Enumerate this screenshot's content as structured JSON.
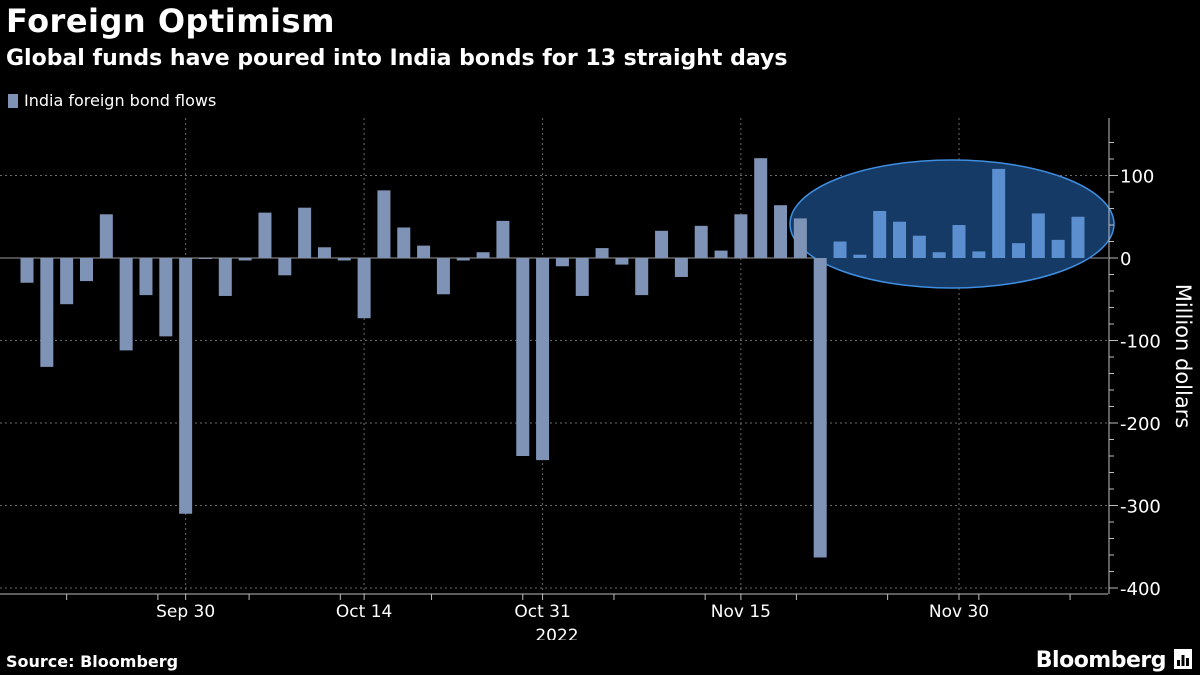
{
  "title": "Foreign Optimism",
  "subtitle": "Global funds have poured into India bonds for 13 straight days",
  "source": "Source: Bloomberg",
  "brand": "Bloomberg",
  "colors": {
    "bar": "#7e93b6",
    "bar_highlight": "#5b8fd0",
    "ellipse_fill": "#163a66",
    "ellipse_stroke": "#3f8ee0",
    "grid": "#6a6a6a"
  },
  "chart_data": {
    "type": "bar",
    "legend": [
      "India foreign bond flows"
    ],
    "ylabel": "Million dollars",
    "ylim": [
      -400,
      150
    ],
    "yticks": [
      100,
      0,
      -100,
      -200,
      -300,
      -400
    ],
    "xtick_labels": [
      "Sep 30",
      "Oct 14",
      "Oct 31",
      "Nov 15",
      "Nov 30"
    ],
    "year_label": "2022",
    "values": [
      -30,
      -132,
      -56,
      -28,
      53,
      -112,
      -45,
      -95,
      -310,
      0,
      -46,
      -3,
      55,
      -21,
      61,
      13,
      -3,
      -73,
      82,
      37,
      15,
      -44,
      -3,
      7,
      45,
      -240,
      -245,
      -10,
      -46,
      12,
      -8,
      -45,
      33,
      -23,
      39,
      9,
      53,
      121,
      64,
      48,
      -363,
      20,
      4,
      57,
      44,
      27,
      7,
      40,
      8,
      108,
      18,
      54,
      22,
      50
    ],
    "highlight_start_index": 41,
    "annotation": "13 straight days of inflows (circled)"
  }
}
